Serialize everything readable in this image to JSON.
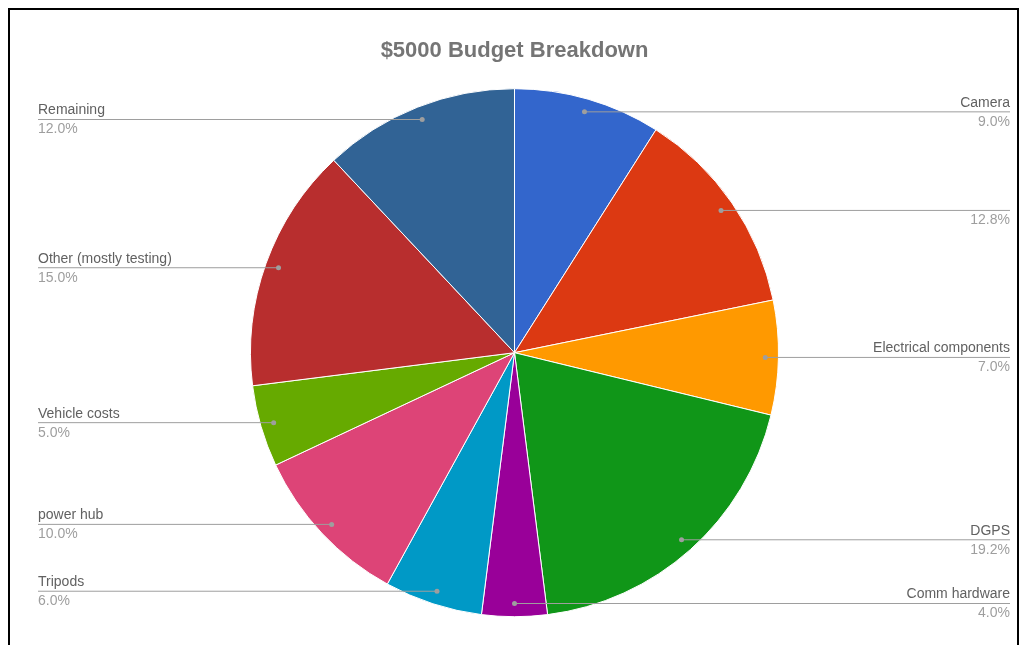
{
  "chart_data": {
    "type": "pie",
    "title": "$5000 Budget Breakdown",
    "categories": [
      "Camera",
      null,
      "Electrical components",
      "DGPS",
      "Comm hardware",
      "Tripods",
      "power hub",
      "Vehicle costs",
      "Other (mostly testing)",
      "Remaining"
    ],
    "values": [
      9,
      12.8,
      7,
      19.2,
      4,
      6,
      10,
      5,
      15,
      12
    ],
    "value_labels": [
      "9.0%",
      "12.8%",
      "7.0%",
      "19.2%",
      "4.0%",
      "6.0%",
      "10.0%",
      "5.0%",
      "15.0%",
      "12.0%"
    ],
    "colors": [
      "#3366cc",
      "#dc3912",
      "#ff9900",
      "#109618",
      "#990099",
      "#0099c6",
      "#dd4477",
      "#66aa00",
      "#b82e2e",
      "#316395"
    ],
    "legend": false
  }
}
